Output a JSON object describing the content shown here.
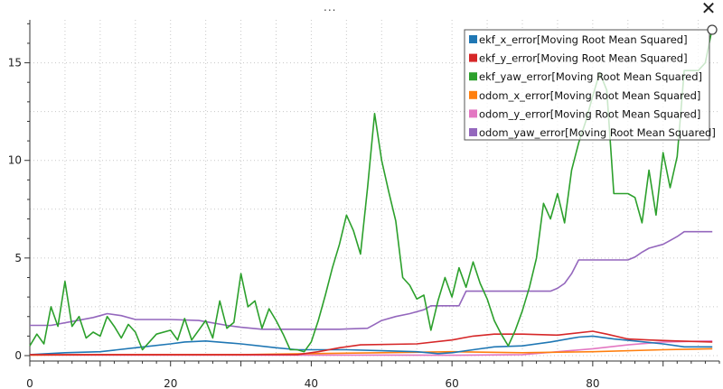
{
  "window": {
    "drag_handle": "...",
    "close_label": "✕"
  },
  "chart_data": {
    "type": "line",
    "xlim": [
      0,
      98
    ],
    "ylim": [
      0,
      17.2
    ],
    "x_ticks": [
      0,
      20,
      40,
      60,
      80
    ],
    "y_ticks": [
      0,
      5,
      10,
      15
    ],
    "grid": true,
    "legend_position": "top-right",
    "series": [
      {
        "name": "ekf_x_error[Moving Root Mean Squared]",
        "color": "#1f77b4",
        "points": [
          [
            0,
            0.05
          ],
          [
            5,
            0.15
          ],
          [
            10,
            0.2
          ],
          [
            15,
            0.4
          ],
          [
            20,
            0.6
          ],
          [
            22,
            0.7
          ],
          [
            25,
            0.75
          ],
          [
            30,
            0.6
          ],
          [
            35,
            0.4
          ],
          [
            38,
            0.3
          ],
          [
            40,
            0.3
          ],
          [
            45,
            0.3
          ],
          [
            50,
            0.25
          ],
          [
            55,
            0.2
          ],
          [
            58,
            0.1
          ],
          [
            60,
            0.15
          ],
          [
            63,
            0.3
          ],
          [
            66,
            0.45
          ],
          [
            70,
            0.5
          ],
          [
            74,
            0.7
          ],
          [
            78,
            0.95
          ],
          [
            80,
            1.0
          ],
          [
            83,
            0.85
          ],
          [
            86,
            0.75
          ],
          [
            90,
            0.6
          ],
          [
            93,
            0.45
          ],
          [
            97,
            0.45
          ]
        ]
      },
      {
        "name": "ekf_y_error[Moving Root Mean Squared]",
        "color": "#d62728",
        "points": [
          [
            0,
            0.05
          ],
          [
            10,
            0.05
          ],
          [
            20,
            0.05
          ],
          [
            30,
            0.05
          ],
          [
            38,
            0.05
          ],
          [
            41,
            0.2
          ],
          [
            44,
            0.4
          ],
          [
            47,
            0.55
          ],
          [
            55,
            0.6
          ],
          [
            60,
            0.8
          ],
          [
            63,
            1.0
          ],
          [
            66,
            1.1
          ],
          [
            70,
            1.1
          ],
          [
            75,
            1.05
          ],
          [
            80,
            1.25
          ],
          [
            82,
            1.1
          ],
          [
            85,
            0.85
          ],
          [
            88,
            0.8
          ],
          [
            92,
            0.75
          ],
          [
            97,
            0.7
          ]
        ]
      },
      {
        "name": "ekf_yaw_error[Moving Root Mean Squared]",
        "color": "#2ca02c",
        "points": [
          [
            0,
            0.5
          ],
          [
            1,
            1.1
          ],
          [
            2,
            0.6
          ],
          [
            3,
            2.5
          ],
          [
            4,
            1.5
          ],
          [
            5,
            3.8
          ],
          [
            6,
            1.5
          ],
          [
            7,
            2.0
          ],
          [
            8,
            0.9
          ],
          [
            9,
            1.2
          ],
          [
            10,
            1.0
          ],
          [
            11,
            2.0
          ],
          [
            12,
            1.5
          ],
          [
            13,
            0.9
          ],
          [
            14,
            1.6
          ],
          [
            15,
            1.2
          ],
          [
            16,
            0.3
          ],
          [
            18,
            1.1
          ],
          [
            20,
            1.3
          ],
          [
            21,
            0.8
          ],
          [
            22,
            1.9
          ],
          [
            23,
            0.8
          ],
          [
            25,
            1.8
          ],
          [
            26,
            0.9
          ],
          [
            27,
            2.8
          ],
          [
            28,
            1.4
          ],
          [
            29,
            1.7
          ],
          [
            30,
            4.2
          ],
          [
            31,
            2.5
          ],
          [
            32,
            2.8
          ],
          [
            33,
            1.4
          ],
          [
            34,
            2.4
          ],
          [
            35,
            1.8
          ],
          [
            36,
            1.1
          ],
          [
            37,
            0.3
          ],
          [
            38,
            0.3
          ],
          [
            39,
            0.2
          ],
          [
            40,
            0.7
          ],
          [
            41,
            1.8
          ],
          [
            42,
            3.1
          ],
          [
            43,
            4.5
          ],
          [
            44,
            5.7
          ],
          [
            45,
            7.2
          ],
          [
            46,
            6.4
          ],
          [
            47,
            5.2
          ],
          [
            48,
            8.6
          ],
          [
            49,
            12.4
          ],
          [
            50,
            10.0
          ],
          [
            51,
            8.4
          ],
          [
            52,
            6.9
          ],
          [
            53,
            4.0
          ],
          [
            54,
            3.6
          ],
          [
            55,
            2.9
          ],
          [
            56,
            3.1
          ],
          [
            57,
            1.3
          ],
          [
            58,
            2.8
          ],
          [
            59,
            4.0
          ],
          [
            60,
            3.0
          ],
          [
            61,
            4.5
          ],
          [
            62,
            3.5
          ],
          [
            63,
            4.8
          ],
          [
            64,
            3.7
          ],
          [
            65,
            2.9
          ],
          [
            66,
            1.8
          ],
          [
            67,
            1.1
          ],
          [
            68,
            0.5
          ],
          [
            69,
            1.3
          ],
          [
            70,
            2.3
          ],
          [
            71,
            3.5
          ],
          [
            72,
            5.0
          ],
          [
            73,
            7.8
          ],
          [
            74,
            7.0
          ],
          [
            75,
            8.3
          ],
          [
            76,
            6.8
          ],
          [
            77,
            9.5
          ],
          [
            78,
            10.9
          ],
          [
            79,
            12.0
          ],
          [
            80,
            13.3
          ],
          [
            81,
            14.5
          ],
          [
            82,
            13.6
          ],
          [
            83,
            8.3
          ],
          [
            84,
            8.3
          ],
          [
            85,
            8.3
          ],
          [
            86,
            8.1
          ],
          [
            87,
            6.8
          ],
          [
            88,
            9.5
          ],
          [
            89,
            7.2
          ],
          [
            90,
            10.4
          ],
          [
            91,
            8.6
          ],
          [
            92,
            10.2
          ],
          [
            93,
            14.6
          ],
          [
            95,
            14.6
          ],
          [
            96,
            15.0
          ],
          [
            97,
            16.8
          ]
        ]
      },
      {
        "name": "odom_x_error[Moving Root Mean Squared]",
        "color": "#ff7f0e",
        "points": [
          [
            0,
            0.03
          ],
          [
            10,
            0.05
          ],
          [
            20,
            0.05
          ],
          [
            30,
            0.05
          ],
          [
            40,
            0.1
          ],
          [
            50,
            0.15
          ],
          [
            60,
            0.2
          ],
          [
            70,
            0.15
          ],
          [
            80,
            0.2
          ],
          [
            90,
            0.3
          ],
          [
            97,
            0.35
          ]
        ]
      },
      {
        "name": "odom_y_error[Moving Root Mean Squared]",
        "color": "#e377c2",
        "points": [
          [
            0,
            0.03
          ],
          [
            10,
            0.03
          ],
          [
            20,
            0.03
          ],
          [
            30,
            0.03
          ],
          [
            40,
            0.03
          ],
          [
            50,
            0.03
          ],
          [
            60,
            0.02
          ],
          [
            70,
            0.05
          ],
          [
            75,
            0.2
          ],
          [
            80,
            0.35
          ],
          [
            85,
            0.55
          ],
          [
            90,
            0.7
          ],
          [
            97,
            0.75
          ]
        ]
      },
      {
        "name": "odom_yaw_error[Moving Root Mean Squared]",
        "color": "#9467bd",
        "points": [
          [
            0,
            1.55
          ],
          [
            3,
            1.55
          ],
          [
            6,
            1.75
          ],
          [
            9,
            1.95
          ],
          [
            10,
            2.05
          ],
          [
            11,
            2.15
          ],
          [
            13,
            2.05
          ],
          [
            15,
            1.85
          ],
          [
            20,
            1.85
          ],
          [
            24,
            1.8
          ],
          [
            28,
            1.55
          ],
          [
            30,
            1.45
          ],
          [
            33,
            1.35
          ],
          [
            36,
            1.35
          ],
          [
            38,
            1.35
          ],
          [
            40,
            1.35
          ],
          [
            44,
            1.35
          ],
          [
            48,
            1.4
          ],
          [
            49,
            1.6
          ],
          [
            50,
            1.8
          ],
          [
            52,
            2.0
          ],
          [
            54,
            2.15
          ],
          [
            56,
            2.35
          ],
          [
            57,
            2.55
          ],
          [
            59,
            2.55
          ],
          [
            61,
            2.55
          ],
          [
            62,
            3.3
          ],
          [
            64,
            3.3
          ],
          [
            68,
            3.3
          ],
          [
            72,
            3.3
          ],
          [
            74,
            3.3
          ],
          [
            75,
            3.45
          ],
          [
            76,
            3.7
          ],
          [
            77,
            4.2
          ],
          [
            78,
            4.9
          ],
          [
            80,
            4.9
          ],
          [
            82,
            4.9
          ],
          [
            85,
            4.9
          ],
          [
            86,
            5.05
          ],
          [
            87,
            5.3
          ],
          [
            88,
            5.5
          ],
          [
            90,
            5.7
          ],
          [
            91,
            5.9
          ],
          [
            92,
            6.1
          ],
          [
            93,
            6.35
          ],
          [
            95,
            6.35
          ],
          [
            97,
            6.35
          ]
        ]
      }
    ]
  }
}
